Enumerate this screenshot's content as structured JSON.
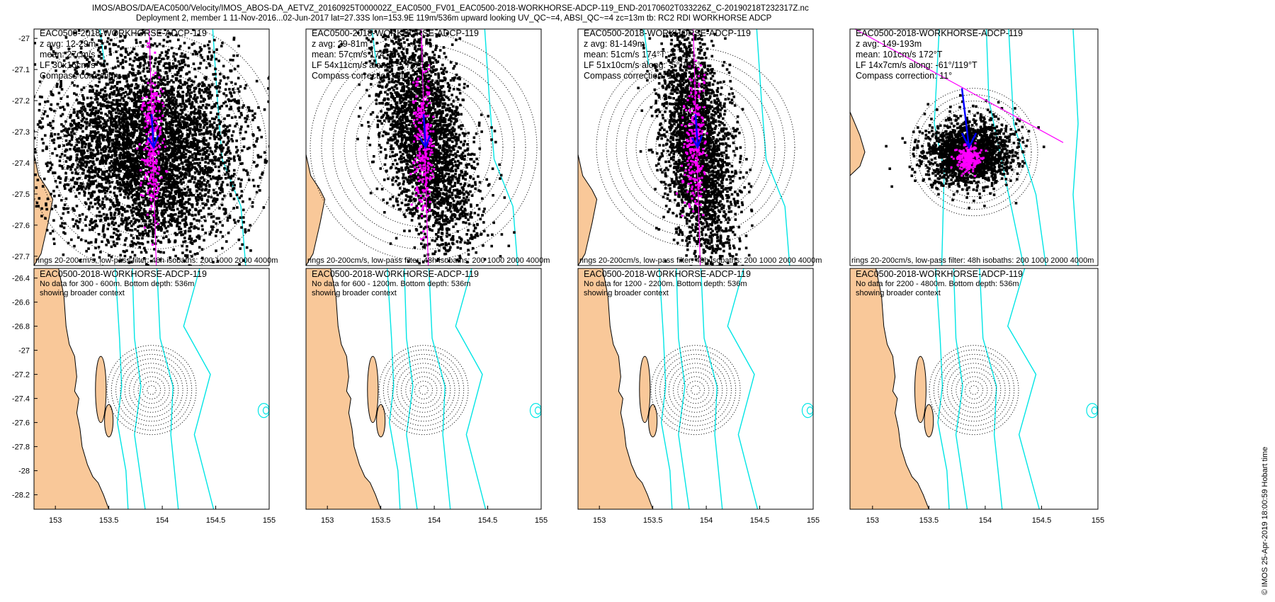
{
  "header": {
    "line1": "IMOS/ABOS/DA/EAC0500/Velocity/IMOS_ABOS-DA_AETVZ_20160925T000002Z_EAC0500_FV01_EAC0500-2018-WORKHORSE-ADCP-119_END-20170602T033226Z_C-20190218T232317Z.nc",
    "line2": "Deployment 2, member 1 11-Nov-2016...02-Jun-2017 lat=27.33S lon=153.9E 119m/536m upward looking UV_QC~=4, ABSI_QC~=4 zc=13m tb: RC2 RDI WORKHORSE ADCP"
  },
  "footer": {
    "credit": "© IMOS 25-Apr-2019 18:00:59 Hobart time"
  },
  "colors": {
    "land": "#f9c899",
    "isobath": "#00e5e5",
    "scatter": "#000000",
    "lowpass": "#ff00ff",
    "mean_arrow": "#0000ff",
    "rings": "#000000"
  },
  "chart_data": [
    {
      "type": "scatter",
      "title": "EAC0500-2018-WORKHORSE-ADCP-119",
      "info": [
        "z avg: 12-29m",
        "mean: 27cm/s",
        "LF 30x16cm/s",
        "Compass correction"
      ],
      "footer": "rings 20-200cm/s, low-pass filter: 48h isobaths: 200 1000 2000 4000m",
      "yticks": [
        "-27",
        "-27.1",
        "-27.2",
        "-27.3",
        "-27.4",
        "-27.5",
        "-27.6",
        "-27.7"
      ],
      "ylim": [
        -27.73,
        -26.97
      ]
    },
    {
      "type": "scatter",
      "title": "EAC0500-2018-WORKHORSE-ADCP-119",
      "info": [
        "z avg: 29-81m",
        "mean: 57cm/s 174°T",
        "LF 54x11cm/s along: -5°/175°T",
        "Compass correction: 11°"
      ],
      "footer": "rings 20-200cm/s, low-pass filter: 48h isobaths: 200 1000 2000 4000m"
    },
    {
      "type": "scatter",
      "title": "EAC0500-2018-WORKHORSE-ADCP-119",
      "info": [
        "z avg: 81-149m",
        "mean: 51cm/s 174°T",
        "LF 51x10cm/s along: -5°/175°T",
        "Compass correction: 11°"
      ],
      "footer": "rings 20-200cm/s, low-pass filter: 48h isobaths: 200 1000 2000 4000m"
    },
    {
      "type": "scatter",
      "title": "EAC0500-2018-WORKHORSE-ADCP-119",
      "info": [
        "z avg: 149-193m",
        "mean: 101cm/s 172°T",
        "LF 14x7cm/s along: -61°/119°T",
        "Compass correction: 11°"
      ],
      "footer": "rings 20-200cm/s, low-pass filter: 48h isobaths: 200 1000 2000 4000m"
    },
    {
      "type": "map",
      "title": "EAC0500-2018-WORKHORSE-ADCP-119",
      "info": [
        "No data for 300 - 600m. Bottom depth: 536m",
        "showing broader context"
      ],
      "yticks": [
        "-26.4",
        "-26.6",
        "-26.8",
        "-27",
        "-27.2",
        "-27.4",
        "-27.6",
        "-27.8",
        "-28",
        "-28.2"
      ],
      "xticks": [
        "153",
        "153.5",
        "154",
        "154.5",
        "155"
      ],
      "xlim": [
        152.8,
        155
      ],
      "ylim": [
        -28.32,
        -26.32
      ]
    },
    {
      "type": "map",
      "title": "EAC0500-2018-WORKHORSE-ADCP-119",
      "info": [
        "No data for 600 - 1200m. Bottom depth: 536m",
        "showing broader context"
      ],
      "xticks": [
        "153",
        "153.5",
        "154",
        "154.5",
        "155"
      ]
    },
    {
      "type": "map",
      "title": "EAC0500-2018-WORKHORSE-ADCP-119",
      "info": [
        "No data for 1200 - 2200m. Bottom depth: 536m",
        "showing broader context"
      ],
      "xticks": [
        "153",
        "153.5",
        "154",
        "154.5",
        "155"
      ]
    },
    {
      "type": "map",
      "title": "EAC0500-2018-WORKHORSE-ADCP-119",
      "info": [
        "No data for 2200 - 4800m. Bottom depth: 536m",
        "showing broader context"
      ],
      "xticks": [
        "153",
        "153.5",
        "154",
        "154.5",
        "155"
      ]
    }
  ]
}
